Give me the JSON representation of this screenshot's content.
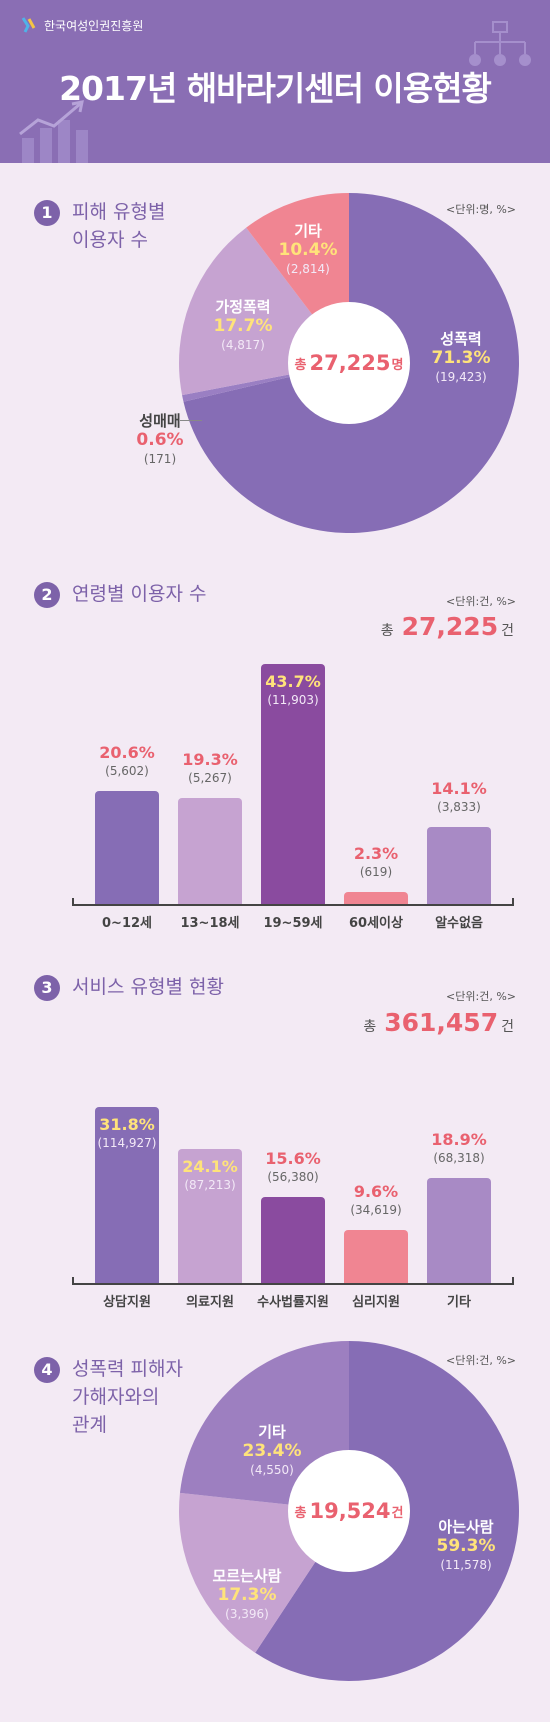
{
  "header": {
    "org_name": "한국여성인권진흥원",
    "title": "2017년 해바라기센터 이용현황"
  },
  "section1": {
    "number": "1",
    "title": "피해 유형별\n이용자 수",
    "unit": "<단위:명, %>",
    "total_prefix": "총",
    "total_value": "27,225",
    "total_suffix": "명"
  },
  "section2": {
    "number": "2",
    "title": "연령별 이용자 수",
    "unit": "<단위:건, %>",
    "total_prefix": "총",
    "total_value": "27,225",
    "total_suffix": "건"
  },
  "section3": {
    "number": "3",
    "title": "서비스 유형별 현황",
    "unit": "<단위:건, %>",
    "total_prefix": "총",
    "total_value": "361,457",
    "total_suffix": "건"
  },
  "section4": {
    "number": "4",
    "title": "성폭력 피해자\n가해자와의\n관계",
    "unit": "<단위:건, %>",
    "total_prefix": "총",
    "total_value": "19,524",
    "total_suffix": "건"
  },
  "chart_data": [
    {
      "type": "pie",
      "categories": [
        "성폭력",
        "성매매",
        "가정폭력",
        "기타"
      ],
      "percents": [
        "71.3%",
        "0.6%",
        "17.7%",
        "10.4%"
      ],
      "counts": [
        "(19,423)",
        "(171)",
        "(4,817)",
        "(2,814)"
      ],
      "values": [
        19423,
        171,
        4817,
        2814
      ],
      "colors": [
        "#866db5",
        "#9a7fc3",
        "#c6a3d1",
        "#f08592"
      ]
    },
    {
      "type": "bar",
      "categories": [
        "0~12세",
        "13~18세",
        "19~59세",
        "60세이상",
        "알수없음"
      ],
      "percents": [
        "20.6%",
        "19.3%",
        "43.7%",
        "2.3%",
        "14.1%"
      ],
      "counts": [
        "(5,602)",
        "(5,267)",
        "(11,903)",
        "(619)",
        "(3,833)"
      ],
      "values": [
        5602,
        5267,
        11903,
        619,
        3833
      ],
      "colors": [
        "#866db5",
        "#c6a3d1",
        "#8a4b9f",
        "#f08592",
        "#a88ac5"
      ]
    },
    {
      "type": "bar",
      "categories": [
        "상담지원",
        "의료지원",
        "수사법률지원",
        "심리지원",
        "기타"
      ],
      "percents": [
        "31.8%",
        "24.1%",
        "15.6%",
        "9.6%",
        "18.9%"
      ],
      "counts": [
        "(114,927)",
        "(87,213)",
        "(56,380)",
        "(34,619)",
        "(68,318)"
      ],
      "values": [
        114927,
        87213,
        56380,
        34619,
        68318
      ],
      "colors": [
        "#866db5",
        "#c6a3d1",
        "#8a4b9f",
        "#f08592",
        "#a88ac5"
      ]
    },
    {
      "type": "pie",
      "categories": [
        "아는사람",
        "모르는사람",
        "기타"
      ],
      "percents": [
        "59.3%",
        "17.3%",
        "23.4%"
      ],
      "counts": [
        "(11,578)",
        "(3,396)",
        "(4,550)"
      ],
      "values": [
        11578,
        3396,
        4550
      ],
      "colors": [
        "#866db5",
        "#c6a3d1",
        "#9d7fc0"
      ]
    }
  ]
}
